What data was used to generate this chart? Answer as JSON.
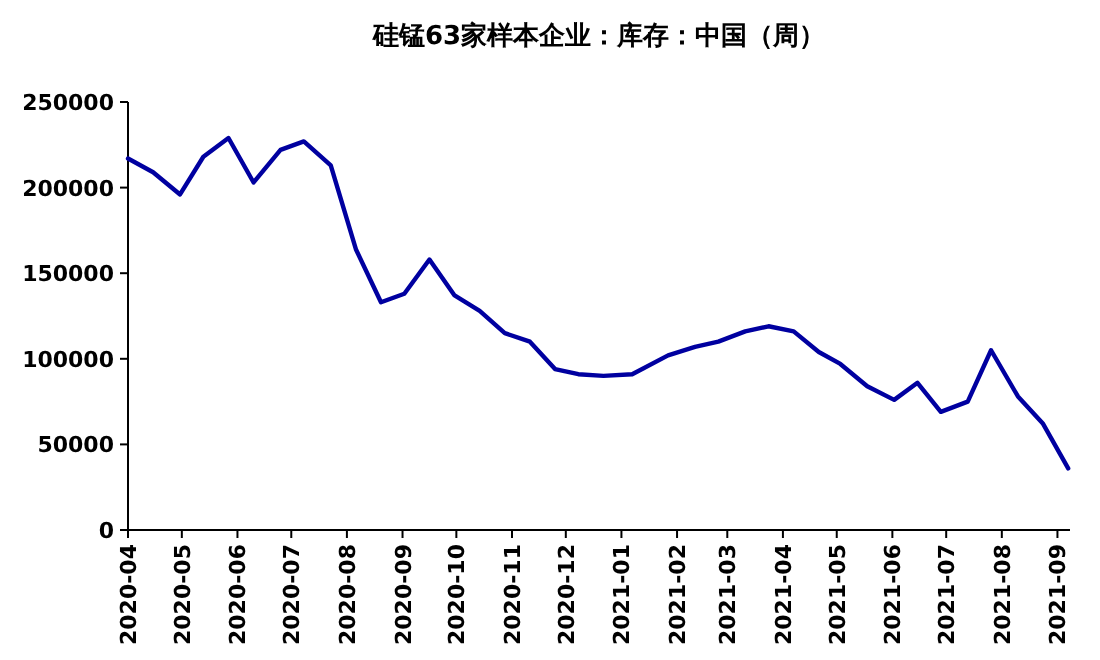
{
  "chart_data": {
    "type": "line",
    "title": "硅锰63家样本企业：库存：中国（周）",
    "x": [
      "2020-04-01",
      "2020-04-15",
      "2020-04-30",
      "2020-05-13",
      "2020-05-27",
      "2020-06-10",
      "2020-06-25",
      "2020-07-08",
      "2020-07-23",
      "2020-08-06",
      "2020-08-20",
      "2020-09-02",
      "2020-09-16",
      "2020-09-30",
      "2020-10-14",
      "2020-10-28",
      "2020-11-11",
      "2020-11-25",
      "2020-12-08",
      "2020-12-22",
      "2021-01-07",
      "2021-01-27",
      "2021-02-11",
      "2021-02-24",
      "2021-03-11",
      "2021-03-24",
      "2021-04-07",
      "2021-04-21",
      "2021-05-03",
      "2021-05-18",
      "2021-06-02",
      "2021-06-15",
      "2021-06-28",
      "2021-07-13",
      "2021-07-26",
      "2021-08-10",
      "2021-08-24",
      "2021-09-07"
    ],
    "series": [
      {
        "color": "#0000a0",
        "values": [
          217000,
          209000,
          196000,
          218000,
          229000,
          203000,
          222000,
          227000,
          213000,
          164000,
          133000,
          138000,
          158000,
          137000,
          128000,
          115000,
          110000,
          94000,
          91000,
          90000,
          91000,
          102000,
          107000,
          110000,
          116000,
          119000,
          116000,
          104000,
          97000,
          84000,
          76000,
          86000,
          69000,
          75000,
          105000,
          78000,
          62000,
          36000
        ]
      }
    ],
    "xlim": [
      "2020-04-01",
      "2021-09-08"
    ],
    "xticks": [
      "2020-04",
      "2020-05",
      "2020-06",
      "2020-07",
      "2020-08",
      "2020-09",
      "2020-10",
      "2020-11",
      "2020-12",
      "2021-01",
      "2021-02",
      "2021-03",
      "2021-04",
      "2021-05",
      "2021-06",
      "2021-07",
      "2021-08",
      "2021-09"
    ],
    "ylim": [
      0,
      250000
    ],
    "yticks": [
      0,
      50000,
      100000,
      150000,
      200000,
      250000
    ],
    "grid": false,
    "marker": "none",
    "line_style": "solid"
  }
}
